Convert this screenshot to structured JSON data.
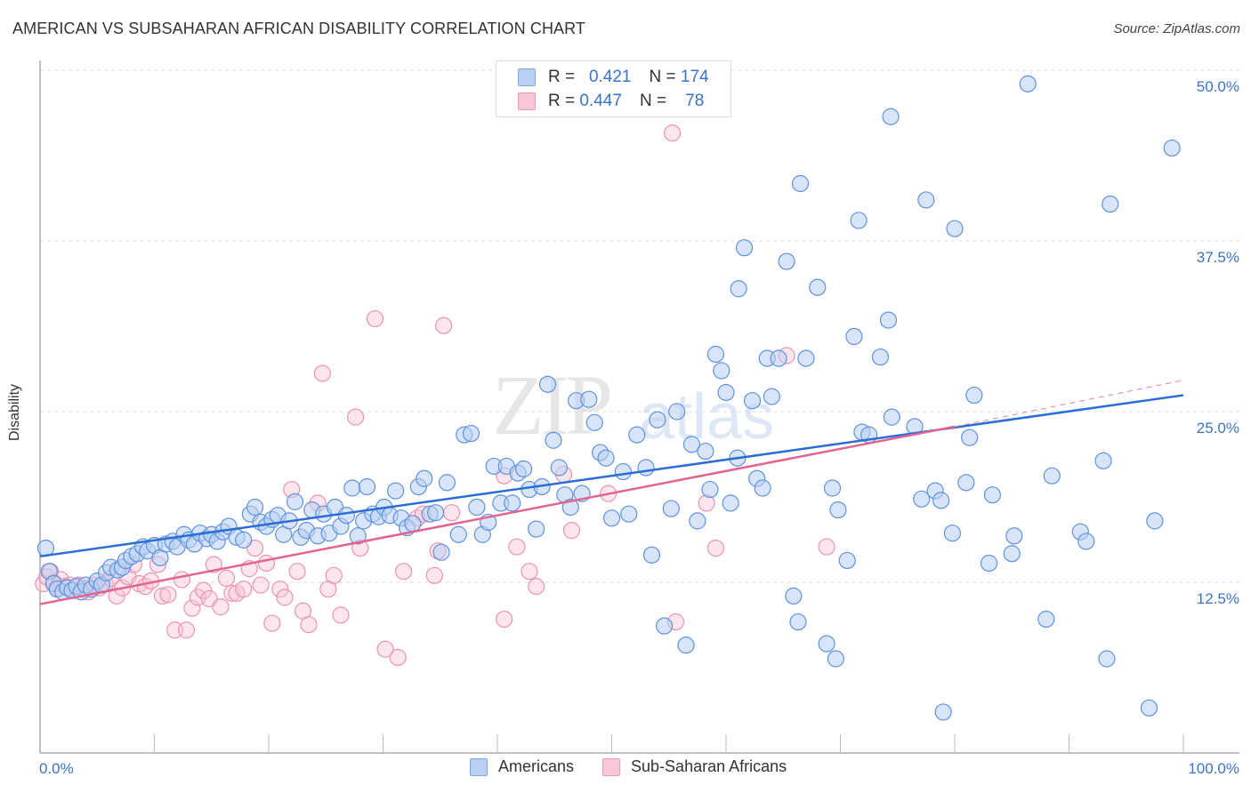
{
  "header": {
    "title": "AMERICAN VS SUBSAHARAN AFRICAN DISABILITY CORRELATION CHART",
    "source": "Source: ZipAtlas.com"
  },
  "watermark": {
    "zip": "ZIP",
    "atlas": "atlas"
  },
  "legend_top": [
    {
      "r_label": "R =",
      "r_value": "0.421",
      "n_label": "N =",
      "n_value": "174"
    },
    {
      "r_label": "R =",
      "r_value": "0.447",
      "n_label": "N =",
      "n_value": "78"
    }
  ],
  "chart_data": {
    "type": "scatter",
    "title": "AMERICAN VS SUBSAHARAN AFRICAN DISABILITY CORRELATION CHART",
    "xlabel": "",
    "ylabel": "Disability",
    "xlim": [
      0,
      100
    ],
    "ylim": [
      0,
      52
    ],
    "x_tick_labels": [
      "0.0%",
      "100.0%"
    ],
    "y_ticks": [
      12.5,
      25.0,
      37.5,
      50.0
    ],
    "y_tick_labels": [
      "12.5%",
      "25.0%",
      "37.5%",
      "50.0%"
    ],
    "grid": true,
    "legend_position": "top-center",
    "colors": {
      "Americans": "#3b78d8",
      "Sub-Saharan Africans": "#e8709a"
    },
    "series": [
      {
        "name": "Americans",
        "R": 0.421,
        "N": 174,
        "trend": {
          "x": [
            0,
            100
          ],
          "y": [
            14.4,
            26.2
          ],
          "style": "solid"
        },
        "points": [
          [
            0.5,
            15.0
          ],
          [
            0.8,
            13.3
          ],
          [
            1.2,
            12.4
          ],
          [
            1.5,
            12.0
          ],
          [
            2.0,
            11.8
          ],
          [
            2.4,
            12.1
          ],
          [
            2.8,
            11.9
          ],
          [
            3.2,
            12.2
          ],
          [
            3.6,
            11.8
          ],
          [
            4.0,
            12.3
          ],
          [
            4.5,
            12.0
          ],
          [
            5.0,
            12.6
          ],
          [
            5.4,
            12.3
          ],
          [
            5.8,
            13.2
          ],
          [
            6.2,
            13.6
          ],
          [
            6.8,
            13.4
          ],
          [
            7.2,
            13.6
          ],
          [
            7.5,
            14.1
          ],
          [
            8.0,
            14.4
          ],
          [
            8.5,
            14.6
          ],
          [
            9.0,
            15.1
          ],
          [
            9.4,
            14.8
          ],
          [
            10.0,
            15.2
          ],
          [
            10.5,
            14.3
          ],
          [
            11.0,
            15.3
          ],
          [
            11.6,
            15.5
          ],
          [
            12.0,
            15.1
          ],
          [
            12.6,
            16.0
          ],
          [
            13.0,
            15.6
          ],
          [
            13.5,
            15.3
          ],
          [
            14.0,
            16.1
          ],
          [
            14.6,
            15.7
          ],
          [
            15.0,
            16.0
          ],
          [
            15.5,
            15.5
          ],
          [
            16.0,
            16.2
          ],
          [
            16.5,
            16.6
          ],
          [
            17.2,
            15.8
          ],
          [
            17.8,
            15.6
          ],
          [
            18.4,
            17.5
          ],
          [
            18.8,
            18.0
          ],
          [
            19.3,
            16.9
          ],
          [
            19.8,
            16.6
          ],
          [
            20.3,
            17.1
          ],
          [
            20.8,
            17.4
          ],
          [
            21.3,
            16.0
          ],
          [
            21.8,
            17.0
          ],
          [
            22.3,
            18.4
          ],
          [
            22.8,
            15.8
          ],
          [
            23.3,
            16.3
          ],
          [
            23.8,
            17.8
          ],
          [
            24.3,
            15.9
          ],
          [
            24.8,
            17.5
          ],
          [
            25.3,
            16.1
          ],
          [
            25.8,
            18.0
          ],
          [
            26.3,
            16.6
          ],
          [
            26.8,
            17.4
          ],
          [
            27.3,
            19.4
          ],
          [
            27.8,
            15.9
          ],
          [
            28.3,
            17.0
          ],
          [
            28.6,
            19.5
          ],
          [
            29.1,
            17.5
          ],
          [
            29.6,
            17.3
          ],
          [
            30.1,
            18.0
          ],
          [
            30.6,
            17.4
          ],
          [
            31.1,
            19.2
          ],
          [
            31.6,
            17.2
          ],
          [
            32.1,
            16.5
          ],
          [
            32.6,
            16.8
          ],
          [
            33.1,
            19.5
          ],
          [
            33.6,
            20.1
          ],
          [
            34.1,
            17.5
          ],
          [
            34.6,
            17.6
          ],
          [
            35.1,
            14.7
          ],
          [
            35.6,
            19.8
          ],
          [
            36.6,
            16.0
          ],
          [
            37.1,
            23.3
          ],
          [
            37.7,
            23.4
          ],
          [
            38.2,
            18.0
          ],
          [
            38.7,
            16.0
          ],
          [
            39.2,
            16.9
          ],
          [
            39.7,
            21.0
          ],
          [
            40.3,
            18.3
          ],
          [
            40.8,
            21.0
          ],
          [
            41.3,
            18.3
          ],
          [
            41.8,
            20.5
          ],
          [
            42.3,
            20.8
          ],
          [
            42.8,
            19.3
          ],
          [
            43.4,
            16.4
          ],
          [
            43.9,
            19.5
          ],
          [
            44.4,
            27.0
          ],
          [
            44.9,
            22.9
          ],
          [
            45.4,
            20.9
          ],
          [
            45.9,
            18.9
          ],
          [
            46.4,
            18.0
          ],
          [
            46.9,
            25.8
          ],
          [
            47.4,
            19.0
          ],
          [
            48.0,
            25.9
          ],
          [
            48.5,
            24.2
          ],
          [
            49.0,
            22.0
          ],
          [
            49.5,
            21.6
          ],
          [
            50.0,
            17.2
          ],
          [
            51.0,
            20.6
          ],
          [
            51.5,
            17.5
          ],
          [
            52.2,
            23.3
          ],
          [
            53.0,
            20.9
          ],
          [
            53.5,
            14.5
          ],
          [
            54.0,
            24.4
          ],
          [
            54.6,
            9.3
          ],
          [
            55.2,
            17.9
          ],
          [
            55.7,
            25.0
          ],
          [
            56.5,
            7.9
          ],
          [
            57.0,
            22.6
          ],
          [
            57.5,
            17.0
          ],
          [
            58.2,
            22.1
          ],
          [
            58.6,
            19.3
          ],
          [
            59.1,
            29.2
          ],
          [
            59.6,
            28.0
          ],
          [
            60.0,
            26.4
          ],
          [
            60.4,
            18.3
          ],
          [
            61.0,
            21.6
          ],
          [
            61.6,
            37.0
          ],
          [
            61.1,
            34.0
          ],
          [
            62.3,
            25.8
          ],
          [
            62.7,
            20.1
          ],
          [
            63.2,
            19.4
          ],
          [
            63.6,
            28.9
          ],
          [
            64.0,
            26.1
          ],
          [
            64.6,
            28.9
          ],
          [
            65.3,
            36.0
          ],
          [
            65.9,
            11.5
          ],
          [
            66.3,
            9.6
          ],
          [
            66.5,
            41.7
          ],
          [
            67.0,
            28.9
          ],
          [
            68.0,
            34.1
          ],
          [
            68.8,
            8.0
          ],
          [
            69.6,
            6.9
          ],
          [
            69.3,
            19.4
          ],
          [
            69.8,
            17.8
          ],
          [
            70.6,
            14.1
          ],
          [
            71.2,
            30.5
          ],
          [
            71.6,
            39.0
          ],
          [
            71.9,
            23.5
          ],
          [
            72.5,
            23.3
          ],
          [
            73.5,
            29.0
          ],
          [
            74.2,
            31.7
          ],
          [
            74.4,
            46.6
          ],
          [
            74.5,
            24.6
          ],
          [
            76.5,
            23.9
          ],
          [
            77.5,
            40.5
          ],
          [
            77.1,
            18.6
          ],
          [
            78.3,
            19.2
          ],
          [
            78.8,
            18.5
          ],
          [
            79.0,
            3.0
          ],
          [
            79.8,
            16.1
          ],
          [
            80.0,
            38.4
          ],
          [
            81.0,
            19.8
          ],
          [
            81.3,
            23.1
          ],
          [
            81.7,
            26.2
          ],
          [
            83.0,
            13.9
          ],
          [
            83.3,
            18.9
          ],
          [
            85.0,
            14.6
          ],
          [
            85.2,
            15.9
          ],
          [
            86.4,
            49.0
          ],
          [
            88.0,
            9.8
          ],
          [
            88.5,
            20.3
          ],
          [
            91.0,
            16.2
          ],
          [
            91.5,
            15.5
          ],
          [
            93.0,
            21.4
          ],
          [
            93.3,
            6.9
          ],
          [
            93.6,
            40.2
          ],
          [
            97.0,
            3.3
          ],
          [
            97.5,
            17.0
          ],
          [
            99.0,
            44.3
          ]
        ]
      },
      {
        "name": "Sub-Saharan Africans",
        "R": 0.447,
        "N": 78,
        "trend": {
          "x": [
            0,
            80,
            100
          ],
          "y": [
            10.9,
            23.9,
            27.3
          ],
          "style": "solid-then-dashed"
        },
        "points": [
          [
            0.3,
            12.4
          ],
          [
            0.6,
            12.9
          ],
          [
            0.9,
            13.3
          ],
          [
            1.2,
            12.5
          ],
          [
            1.5,
            12.1
          ],
          [
            1.8,
            12.7
          ],
          [
            2.2,
            12.2
          ],
          [
            2.6,
            12.3
          ],
          [
            3.0,
            11.9
          ],
          [
            3.4,
            12.3
          ],
          [
            3.8,
            12.0
          ],
          [
            4.2,
            11.8
          ],
          [
            4.7,
            12.3
          ],
          [
            5.2,
            12.1
          ],
          [
            5.7,
            12.4
          ],
          [
            6.2,
            12.8
          ],
          [
            6.7,
            11.5
          ],
          [
            7.2,
            12.1
          ],
          [
            7.7,
            12.9
          ],
          [
            8.2,
            13.8
          ],
          [
            8.7,
            12.4
          ],
          [
            9.2,
            12.2
          ],
          [
            9.7,
            12.6
          ],
          [
            10.3,
            13.8
          ],
          [
            10.7,
            11.5
          ],
          [
            11.2,
            11.6
          ],
          [
            11.8,
            9.0
          ],
          [
            12.4,
            12.7
          ],
          [
            12.8,
            9.0
          ],
          [
            13.3,
            10.6
          ],
          [
            13.8,
            11.4
          ],
          [
            14.3,
            11.9
          ],
          [
            14.8,
            11.3
          ],
          [
            15.2,
            13.8
          ],
          [
            15.8,
            10.7
          ],
          [
            16.3,
            12.8
          ],
          [
            16.8,
            11.7
          ],
          [
            17.2,
            11.7
          ],
          [
            17.8,
            12.0
          ],
          [
            18.3,
            13.5
          ],
          [
            18.8,
            15.0
          ],
          [
            19.3,
            12.3
          ],
          [
            19.8,
            13.9
          ],
          [
            20.3,
            9.5
          ],
          [
            21.0,
            12.0
          ],
          [
            21.4,
            11.4
          ],
          [
            22.0,
            19.3
          ],
          [
            22.5,
            13.3
          ],
          [
            23.0,
            10.4
          ],
          [
            23.5,
            9.4
          ],
          [
            24.3,
            18.3
          ],
          [
            24.7,
            27.8
          ],
          [
            25.2,
            12.0
          ],
          [
            25.7,
            13.0
          ],
          [
            26.3,
            10.1
          ],
          [
            27.6,
            24.6
          ],
          [
            28.0,
            15.0
          ],
          [
            29.3,
            31.8
          ],
          [
            30.2,
            7.6
          ],
          [
            31.3,
            7.0
          ],
          [
            31.8,
            13.3
          ],
          [
            33.0,
            17.2
          ],
          [
            33.5,
            17.5
          ],
          [
            34.5,
            13.0
          ],
          [
            35.3,
            31.3
          ],
          [
            34.8,
            14.8
          ],
          [
            36.0,
            17.6
          ],
          [
            40.6,
            20.3
          ],
          [
            40.6,
            9.8
          ],
          [
            41.7,
            15.1
          ],
          [
            42.8,
            13.3
          ],
          [
            43.4,
            12.2
          ],
          [
            45.8,
            20.4
          ],
          [
            46.5,
            16.3
          ],
          [
            49.7,
            19.0
          ],
          [
            55.6,
            9.6
          ],
          [
            55.3,
            45.4
          ],
          [
            58.3,
            18.3
          ],
          [
            59.1,
            15.0
          ],
          [
            65.3,
            29.1
          ],
          [
            68.8,
            15.1
          ]
        ]
      }
    ]
  },
  "axes": {
    "ylabel": "Disability",
    "x_left": "0.0%",
    "x_right": "100.0%",
    "y_ticks": [
      "50.0%",
      "37.5%",
      "25.0%",
      "12.5%"
    ]
  },
  "legend_bottom": [
    "Americans",
    "Sub-Saharan Africans"
  ]
}
